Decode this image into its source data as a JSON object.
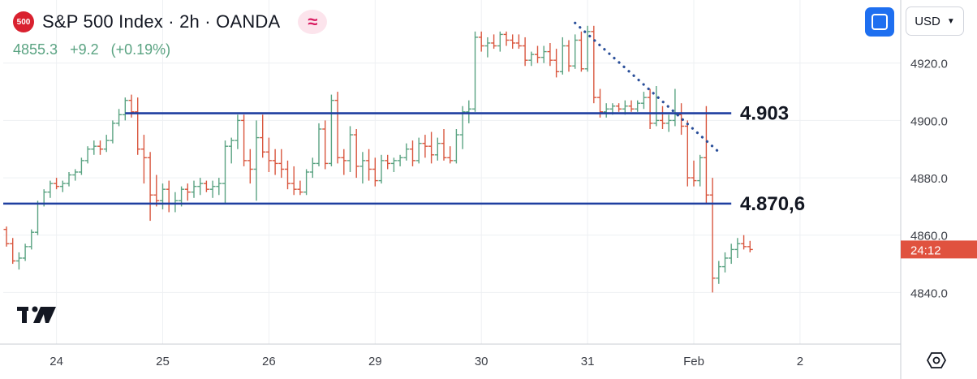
{
  "header": {
    "badge": "500",
    "title": "S&P 500 Index · 2h · OANDA",
    "quote": {
      "last": "4855.3",
      "change": "+9.2",
      "change_pct": "(+0.19%)"
    }
  },
  "toolbar": {
    "currency": "USD"
  },
  "icons": {
    "fullscreen": "fullscreen-icon",
    "settings": "settings-hexagon-icon",
    "indicator": "wave-icon",
    "logo": "tradingview-logo"
  },
  "colors": {
    "up": "#5aa382",
    "down": "#d9573f",
    "level_line": "#1f3fa0",
    "trendline": "#2a4f9a",
    "countdown_bg": "#e0523f"
  },
  "countdown": "24:12",
  "chart_data": {
    "type": "ohlc",
    "y_axis": {
      "min": 4822,
      "max": 4942,
      "ticks": [
        4840,
        4860,
        4880,
        4900,
        4920
      ],
      "tick_labels": [
        "4840.0",
        "4860.0",
        "4880.0",
        "4900.0",
        "4920.0"
      ]
    },
    "x_axis": {
      "tick_labels": [
        "24",
        "25",
        "26",
        "29",
        "30",
        "31",
        "Feb",
        "2"
      ],
      "tick_bars": [
        8,
        25,
        42,
        59,
        76,
        93,
        110,
        127
      ],
      "bar_count": 145
    },
    "levels": [
      {
        "label": "4.903",
        "value": 4902.5,
        "from_bar": 19,
        "to_bar": 116
      },
      {
        "label": "4.870,6",
        "value": 4871,
        "from_bar": 0,
        "to_bar": 116
      }
    ],
    "trendline": {
      "style": "dotted",
      "from": {
        "bar": 91,
        "value": 4934
      },
      "to": {
        "bar": 114,
        "value": 4889
      }
    },
    "bars": [
      [
        4862,
        4863,
        4856,
        4857
      ],
      [
        4857,
        4859,
        4850,
        4851
      ],
      [
        4851,
        4854,
        4848,
        4852
      ],
      [
        4852,
        4857,
        4851,
        4856
      ],
      [
        4856,
        4862,
        4855,
        4861
      ],
      [
        4861,
        4872,
        4860,
        4871
      ],
      [
        4871,
        4876,
        4870,
        4875
      ],
      [
        4875,
        4879,
        4873,
        4878
      ],
      [
        4878,
        4880,
        4876,
        4877
      ],
      [
        4877,
        4879,
        4875,
        4878
      ],
      [
        4878,
        4882,
        4877,
        4881
      ],
      [
        4881,
        4883,
        4879,
        4882
      ],
      [
        4882,
        4887,
        4881,
        4886
      ],
      [
        4886,
        4891,
        4885,
        4890
      ],
      [
        4890,
        4893,
        4888,
        4891
      ],
      [
        4891,
        4893,
        4888,
        4890
      ],
      [
        4890,
        4895,
        4889,
        4893
      ],
      [
        4893,
        4900,
        4892,
        4899
      ],
      [
        4899,
        4904,
        4898,
        4902
      ],
      [
        4902,
        4908,
        4900,
        4907
      ],
      [
        4907,
        4909,
        4901,
        4903
      ],
      [
        4903,
        4908,
        4888,
        4890
      ],
      [
        4890,
        4895,
        4878,
        4887
      ],
      [
        4887,
        4889,
        4865,
        4874
      ],
      [
        4874,
        4881,
        4870,
        4872
      ],
      [
        4872,
        4878,
        4869,
        4876
      ],
      [
        4876,
        4879,
        4868,
        4871
      ],
      [
        4871,
        4875,
        4868,
        4872
      ],
      [
        4872,
        4877,
        4870,
        4876
      ],
      [
        4876,
        4878,
        4872,
        4875
      ],
      [
        4875,
        4879,
        4873,
        4877
      ],
      [
        4877,
        4880,
        4874,
        4878
      ],
      [
        4878,
        4879,
        4875,
        4876
      ],
      [
        4876,
        4879,
        4873,
        4877
      ],
      [
        4877,
        4880,
        4874,
        4878
      ],
      [
        4878,
        4893,
        4871,
        4891
      ],
      [
        4891,
        4894,
        4885,
        4893
      ],
      [
        4893,
        4902,
        4890,
        4900
      ],
      [
        4900,
        4902,
        4884,
        4886
      ],
      [
        4886,
        4890,
        4878,
        4883
      ],
      [
        4883,
        4900,
        4872,
        4894
      ],
      [
        4894,
        4902,
        4887,
        4889
      ],
      [
        4889,
        4894,
        4882,
        4886
      ],
      [
        4886,
        4890,
        4881,
        4885
      ],
      [
        4885,
        4890,
        4880,
        4883
      ],
      [
        4883,
        4886,
        4876,
        4878
      ],
      [
        4878,
        4884,
        4874,
        4876
      ],
      [
        4876,
        4879,
        4874,
        4875
      ],
      [
        4875,
        4883,
        4874,
        4882
      ],
      [
        4882,
        4887,
        4880,
        4885
      ],
      [
        4885,
        4899,
        4884,
        4897
      ],
      [
        4897,
        4900,
        4883,
        4885
      ],
      [
        4885,
        4909,
        4884,
        4907
      ],
      [
        4907,
        4910,
        4885,
        4887
      ],
      [
        4887,
        4890,
        4881,
        4886
      ],
      [
        4886,
        4898,
        4882,
        4895
      ],
      [
        4895,
        4897,
        4880,
        4884
      ],
      [
        4884,
        4889,
        4878,
        4886
      ],
      [
        4886,
        4890,
        4879,
        4883
      ],
      [
        4883,
        4887,
        4877,
        4879
      ],
      [
        4879,
        4888,
        4878,
        4886
      ],
      [
        4886,
        4888,
        4883,
        4885
      ],
      [
        4885,
        4887,
        4882,
        4886
      ],
      [
        4886,
        4888,
        4884,
        4887
      ],
      [
        4887,
        4892,
        4886,
        4890
      ],
      [
        4890,
        4893,
        4884,
        4886
      ],
      [
        4886,
        4894,
        4885,
        4892
      ],
      [
        4892,
        4895,
        4887,
        4891
      ],
      [
        4891,
        4896,
        4885,
        4888
      ],
      [
        4888,
        4894,
        4886,
        4892
      ],
      [
        4892,
        4897,
        4886,
        4887
      ],
      [
        4887,
        4891,
        4885,
        4886
      ],
      [
        4886,
        4897,
        4885,
        4895
      ],
      [
        4895,
        4905,
        4890,
        4903
      ],
      [
        4903,
        4907,
        4899,
        4904
      ],
      [
        4904,
        4931,
        4903,
        4929
      ],
      [
        4929,
        4931,
        4924,
        4926
      ],
      [
        4926,
        4929,
        4922,
        4927
      ],
      [
        4927,
        4930,
        4925,
        4926
      ],
      [
        4926,
        4931,
        4924,
        4930
      ],
      [
        4930,
        4931,
        4926,
        4928
      ],
      [
        4928,
        4930,
        4925,
        4927
      ],
      [
        4927,
        4930,
        4925,
        4926
      ],
      [
        4926,
        4929,
        4919,
        4921
      ],
      [
        4921,
        4924,
        4919,
        4923
      ],
      [
        4923,
        4926,
        4920,
        4922
      ],
      [
        4922,
        4926,
        4920,
        4924
      ],
      [
        4924,
        4927,
        4919,
        4921
      ],
      [
        4921,
        4925,
        4915,
        4917
      ],
      [
        4917,
        4929,
        4916,
        4926
      ],
      [
        4926,
        4928,
        4917,
        4919
      ],
      [
        4919,
        4930,
        4918,
        4928
      ],
      [
        4928,
        4931,
        4917,
        4918
      ],
      [
        4918,
        4933,
        4917,
        4931
      ],
      [
        4931,
        4933,
        4906,
        4908
      ],
      [
        4908,
        4911,
        4901,
        4903
      ],
      [
        4903,
        4906,
        4901,
        4904
      ],
      [
        4904,
        4906,
        4902,
        4905
      ],
      [
        4905,
        4906,
        4903,
        4904
      ],
      [
        4904,
        4907,
        4902,
        4905
      ],
      [
        4905,
        4907,
        4903,
        4904
      ],
      [
        4904,
        4907,
        4903,
        4906
      ],
      [
        4906,
        4910,
        4904,
        4908
      ],
      [
        4908,
        4911,
        4897,
        4899
      ],
      [
        4899,
        4912,
        4898,
        4900
      ],
      [
        4900,
        4905,
        4897,
        4899
      ],
      [
        4899,
        4902,
        4896,
        4900
      ],
      [
        4900,
        4911,
        4898,
        4902
      ],
      [
        4902,
        4906,
        4895,
        4898
      ],
      [
        4898,
        4900,
        4877,
        4880
      ],
      [
        4880,
        4886,
        4877,
        4879
      ],
      [
        4879,
        4888,
        4877,
        4887
      ],
      [
        4887,
        4905,
        4871,
        4874
      ],
      [
        4874,
        4880,
        4840,
        4845
      ],
      [
        4845,
        4851,
        4843,
        4849
      ],
      [
        4849,
        4854,
        4847,
        4852
      ],
      [
        4852,
        4857,
        4850,
        4855
      ],
      [
        4855,
        4859,
        4852,
        4857
      ],
      [
        4857,
        4860,
        4855,
        4856
      ],
      [
        4856,
        4858,
        4854,
        4855
      ]
    ]
  }
}
